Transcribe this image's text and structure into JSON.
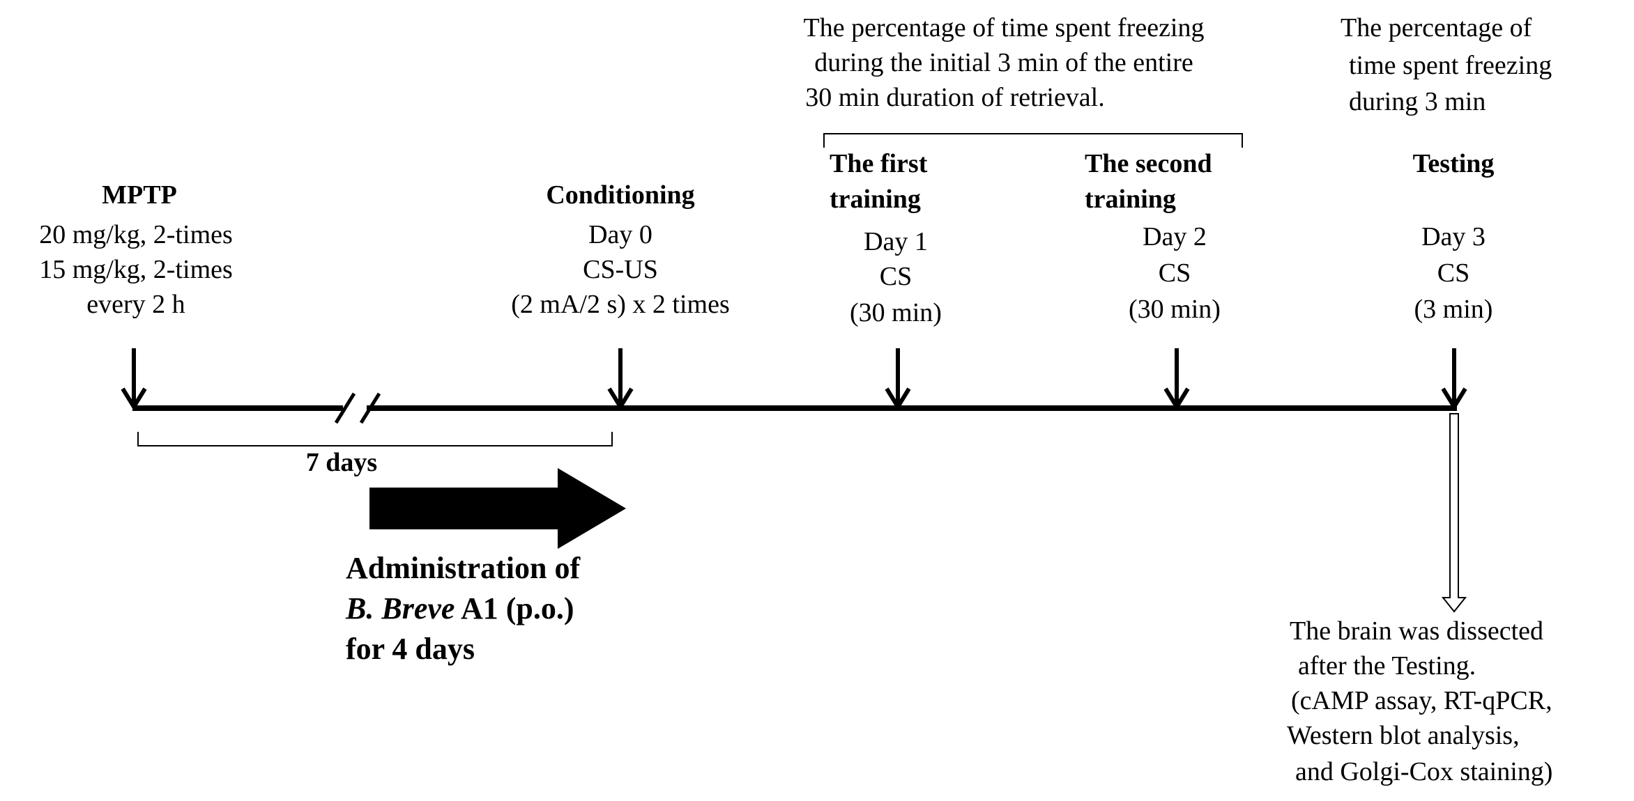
{
  "mptp": {
    "title": "MPTP",
    "line1": "20 mg/kg, 2-times",
    "line2": "15 mg/kg, 2-times",
    "line3": "every 2 h"
  },
  "conditioning": {
    "title": "Conditioning",
    "day": "Day 0",
    "stim": "CS-US",
    "detail": "(2 mA/2 s) x 2 times"
  },
  "training_note": {
    "line1": "The percentage of time spent freezing",
    "line2": "during the initial 3 min of the entire",
    "line3": "30 min duration of retrieval."
  },
  "first_training": {
    "title_line1": "The first",
    "title_line2": "training",
    "day": "Day 1",
    "stim": "CS",
    "duration": "(30 min)"
  },
  "second_training": {
    "title_line1": "The second",
    "title_line2": "training",
    "day": "Day 2",
    "stim": "CS",
    "duration": "(30 min)"
  },
  "testing_note": {
    "line1": "The percentage of",
    "line2": "time spent freezing",
    "line3": "during 3 min"
  },
  "testing": {
    "title": "Testing",
    "day": "Day 3",
    "stim": "CS",
    "duration": "(3 min)"
  },
  "interval": {
    "label": "7 days"
  },
  "administration": {
    "line1": "Administration of",
    "line2_italic": "B. Breve",
    "line2_rest": " A1 (p.o.)",
    "line3": "for 4 days"
  },
  "dissection": {
    "line1": "The brain was dissected",
    "line2": "after the Testing.",
    "line3": "(cAMP assay, RT-qPCR,",
    "line4": "Western blot analysis,",
    "line5": "and Golgi-Cox staining)"
  },
  "colors": {
    "ink": "#000000",
    "background": "#ffffff"
  }
}
